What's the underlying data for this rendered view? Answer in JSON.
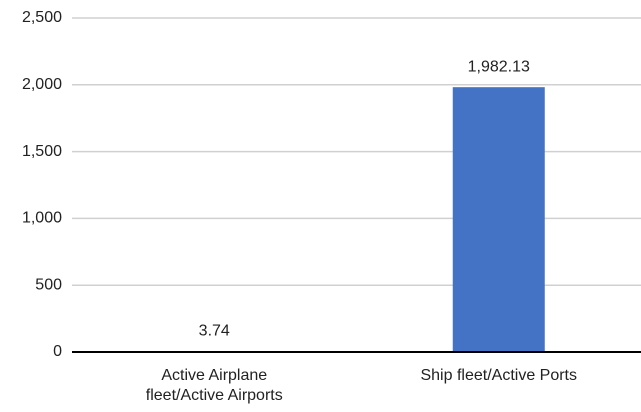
{
  "chart_data": {
    "type": "bar",
    "categories": [
      "Active Airplane fleet/Active Airports",
      "Ship fleet/Active Ports"
    ],
    "values": [
      3.74,
      1982.13
    ],
    "value_labels": [
      "3.74",
      "1,982.13"
    ],
    "color": "#4472c4",
    "ylim": [
      0,
      2500
    ],
    "yticks": [
      0,
      500,
      {
        "value": 1000,
        "label": "1,000"
      },
      {
        "value": 1500,
        "label": "1,500"
      },
      {
        "value": 2000,
        "label": "2,000"
      },
      {
        "value": 2500,
        "label": "2,500"
      }
    ],
    "grid": true
  }
}
